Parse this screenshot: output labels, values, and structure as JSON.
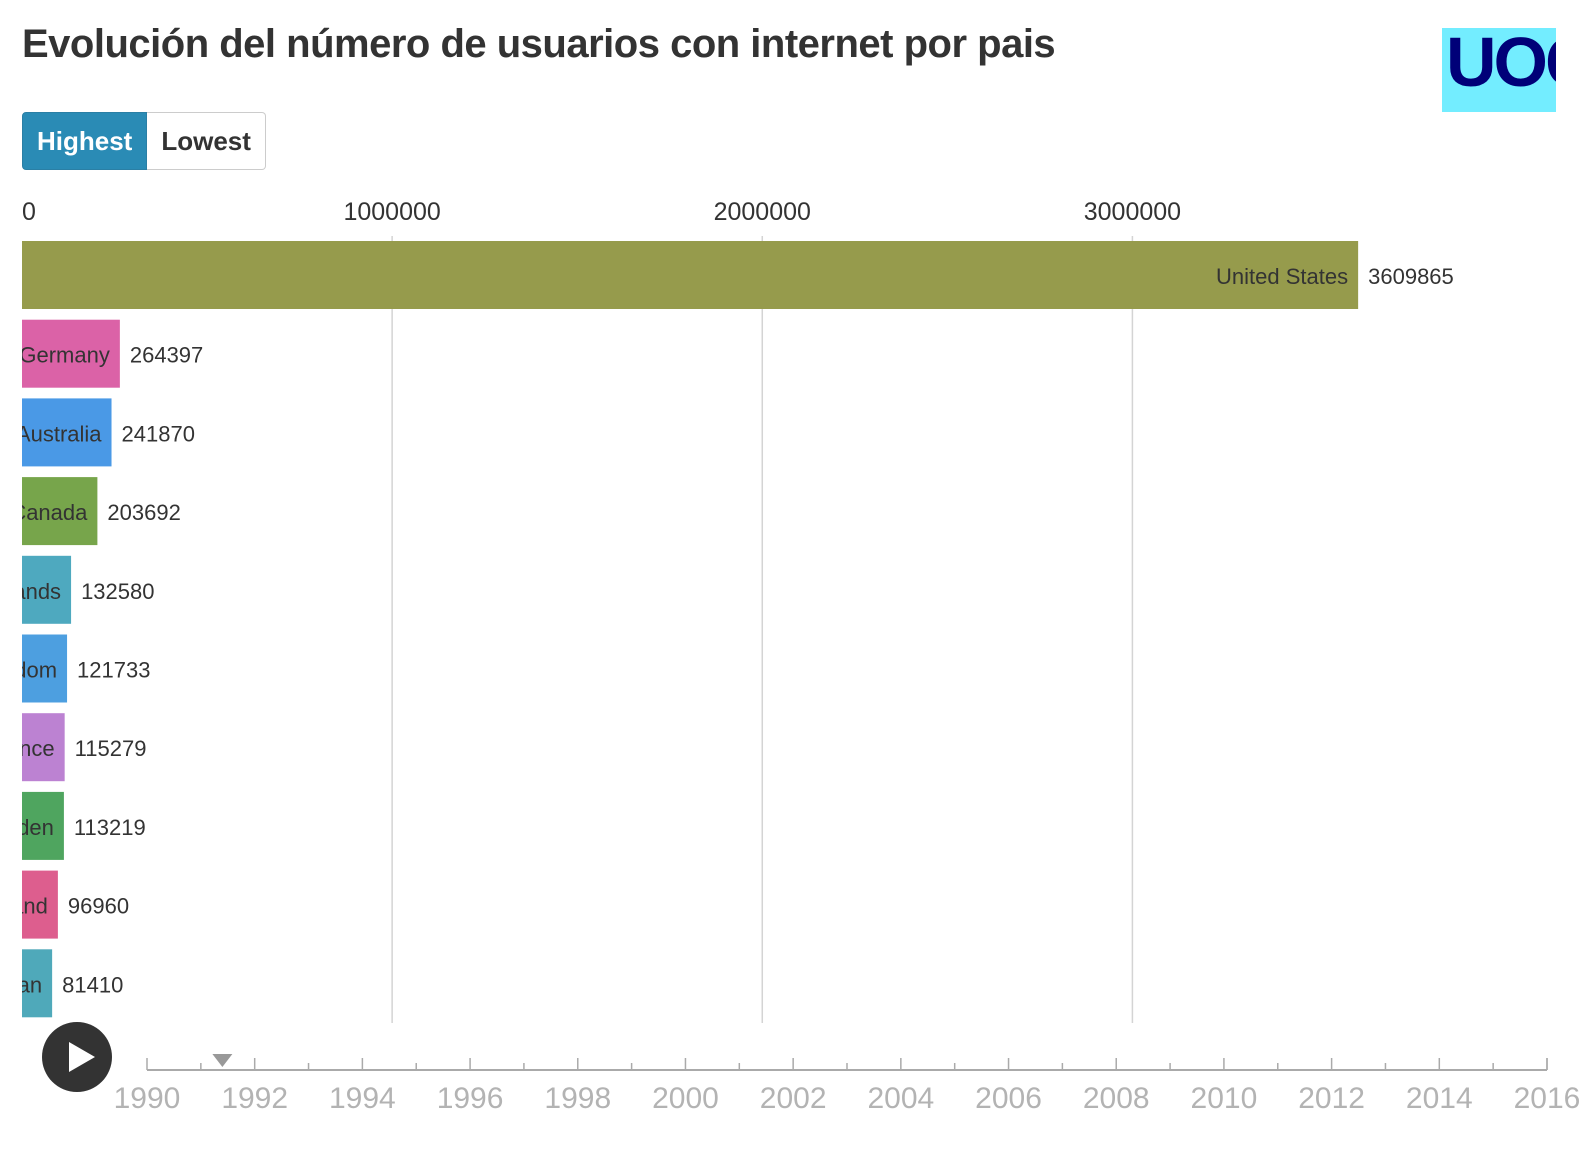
{
  "title": "Evolución del número de usuarios con internet por pais",
  "logo_text": "UOC",
  "toggle": {
    "highest_label": "Highest",
    "lowest_label": "Lowest",
    "selected": "Highest"
  },
  "chart_data": {
    "type": "bar",
    "orientation": "horizontal",
    "xlim": [
      0,
      3700000
    ],
    "xticks": [
      0,
      1000000,
      2000000,
      3000000
    ],
    "grid": true,
    "categories": [
      "United States",
      "Germany",
      "Australia",
      "Canada",
      "Netherlands",
      "United Kingdom",
      "France",
      "Sweden",
      "Finland",
      "Japan"
    ],
    "visible_labels": [
      "United States",
      "Germany",
      "Australia",
      "Canada",
      "ands",
      "dom",
      "nce",
      "den",
      "and",
      "an"
    ],
    "values": [
      3609865,
      264397,
      241870,
      203692,
      132580,
      121733,
      115279,
      113219,
      96960,
      81410
    ],
    "colors": [
      "#969B4C",
      "#DB62A7",
      "#4A99E6",
      "#77A54B",
      "#4EA9BF",
      "#4D9FE0",
      "#BC82D2",
      "#4FA55F",
      "#DD5E8E",
      "#4FA9BA"
    ]
  },
  "timeline": {
    "years": [
      1990,
      1992,
      1994,
      1996,
      1998,
      2000,
      2002,
      2004,
      2006,
      2008,
      2010,
      2012,
      2014,
      2016
    ],
    "range": [
      1990,
      2016
    ],
    "current": 1991.4
  },
  "colors": {
    "toggle_active": "#2A8BB5",
    "logo_bg": "#73EDFF",
    "logo_text": "#000078"
  }
}
